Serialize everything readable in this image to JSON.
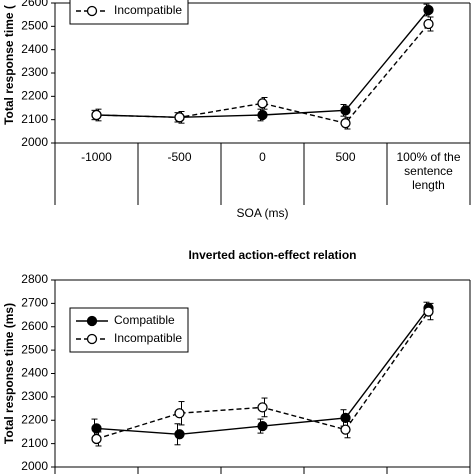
{
  "chart_data": [
    {
      "type": "line",
      "y_label": "Total response time (",
      "x_label": "SOA (ms)",
      "categories": [
        "-1000",
        "-500",
        "0",
        "500",
        "100% of the sentence length"
      ],
      "ylim": [
        2000,
        2600
      ],
      "yticks": [
        2000,
        2100,
        2200,
        2300,
        2400,
        2500,
        2600
      ],
      "series": [
        {
          "color": "#000000",
          "marker": "filled",
          "dash": false,
          "values": [
            2120,
            2110,
            2120,
            2140,
            2570
          ],
          "errors": [
            20,
            20,
            25,
            25,
            25
          ]
        },
        {
          "name": "Incompatible",
          "color": "#000000",
          "marker": "open",
          "dash": true,
          "values": [
            2120,
            2110,
            2170,
            2085,
            2510
          ],
          "errors": [
            25,
            25,
            25,
            25,
            30
          ]
        }
      ]
    },
    {
      "type": "line",
      "title": "Inverted action-effect relation",
      "y_label": "Total response time (ms)",
      "categories": [
        null,
        null,
        null,
        null,
        null
      ],
      "ylim": [
        2000,
        2800
      ],
      "yticks": [
        2000,
        2100,
        2200,
        2300,
        2400,
        2500,
        2600,
        2700,
        2800
      ],
      "series": [
        {
          "name": "Compatible",
          "color": "#000000",
          "marker": "filled",
          "dash": false,
          "values": [
            2165,
            2140,
            2175,
            2210,
            2680
          ],
          "errors": [
            40,
            45,
            30,
            35,
            25
          ]
        },
        {
          "name": "Incompatible",
          "color": "#000000",
          "marker": "open",
          "dash": true,
          "values": [
            2120,
            2230,
            2255,
            2160,
            2665
          ],
          "errors": [
            30,
            50,
            40,
            35,
            35
          ]
        }
      ]
    }
  ]
}
